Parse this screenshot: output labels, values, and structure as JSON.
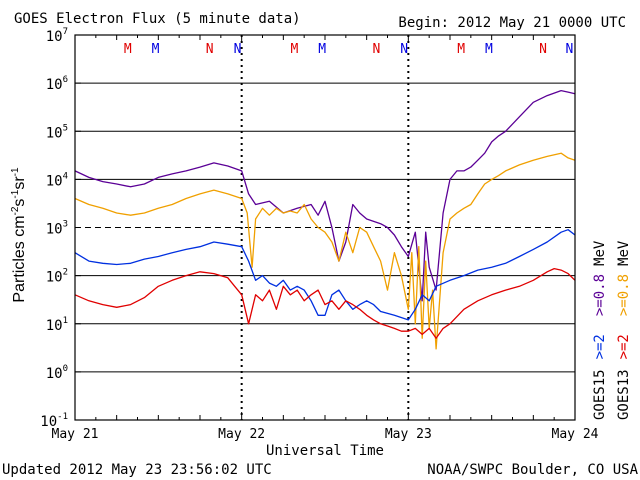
{
  "chart_data": {
    "type": "line",
    "title": "GOES Electron Flux (5 minute data)",
    "begin_label": "Begin: 2012 May 21 0000 UTC",
    "xlabel": "Universal Time",
    "ylabel_main": "Particles cm",
    "ylabel_exp1": "-2",
    "ylabel_mid": "s",
    "ylabel_exp2": "-1",
    "ylabel_tail": "sr",
    "ylabel_exp3": "-1",
    "y_scale": "log",
    "ylim": [
      0.1,
      10000000
    ],
    "y_ticks": [
      {
        "base": "10",
        "exp": "7"
      },
      {
        "base": "10",
        "exp": "6"
      },
      {
        "base": "10",
        "exp": "5"
      },
      {
        "base": "10",
        "exp": "4"
      },
      {
        "base": "10",
        "exp": "3"
      },
      {
        "base": "10",
        "exp": "2"
      },
      {
        "base": "10",
        "exp": "1"
      },
      {
        "base": "10",
        "exp": "0"
      },
      {
        "base": "10",
        "exp": "-1"
      }
    ],
    "xlim_hours": [
      0,
      72
    ],
    "x_ticks": [
      {
        "label": "May 21",
        "hour": 0
      },
      {
        "label": "May 22",
        "hour": 24
      },
      {
        "label": "May 23",
        "hour": 48
      },
      {
        "label": "May 24",
        "hour": 72
      }
    ],
    "mn_markers": [
      {
        "label": "M",
        "hour": 7.6,
        "color": "#e00000"
      },
      {
        "label": "M",
        "hour": 11.6,
        "color": "#0000e0"
      },
      {
        "label": "N",
        "hour": 19.4,
        "color": "#e00000"
      },
      {
        "label": "N",
        "hour": 23.4,
        "color": "#0000e0"
      },
      {
        "label": "M",
        "hour": 31.6,
        "color": "#e00000"
      },
      {
        "label": "M",
        "hour": 35.6,
        "color": "#0000e0"
      },
      {
        "label": "N",
        "hour": 43.4,
        "color": "#e00000"
      },
      {
        "label": "N",
        "hour": 47.4,
        "color": "#0000e0"
      },
      {
        "label": "M",
        "hour": 55.6,
        "color": "#e00000"
      },
      {
        "label": "M",
        "hour": 59.6,
        "color": "#0000e0"
      },
      {
        "label": "N",
        "hour": 67.4,
        "color": "#e00000"
      },
      {
        "label": "N",
        "hour": 71.2,
        "color": "#0000e0"
      }
    ],
    "series": [
      {
        "name": "GOES15 >=0.8 MeV",
        "color": "#5b0096",
        "hours": [
          0,
          2,
          4,
          6,
          8,
          10,
          12,
          14,
          16,
          18,
          20,
          22,
          24,
          25,
          26,
          28,
          30,
          32,
          34,
          35,
          36,
          37,
          38,
          39,
          40,
          41,
          42,
          44,
          45,
          46,
          47,
          48,
          49,
          50,
          50.5,
          51,
          52,
          53,
          54,
          55,
          56,
          57,
          58,
          59,
          60,
          61,
          62,
          64,
          66,
          68,
          70,
          71,
          72
        ],
        "values": [
          15000,
          11000,
          9000,
          8000,
          7000,
          8000,
          11000,
          13000,
          15000,
          18000,
          22000,
          19000,
          15000,
          5000,
          3000,
          3500,
          2000,
          2500,
          3000,
          1800,
          3500,
          1000,
          200,
          500,
          3000,
          2000,
          1500,
          1200,
          1000,
          700,
          400,
          250,
          800,
          30,
          800,
          150,
          50,
          2000,
          10000,
          15000,
          15000,
          18000,
          25000,
          35000,
          60000,
          80000,
          100000,
          200000,
          400000,
          550000,
          700000,
          650000,
          600000
        ]
      },
      {
        "name": "GOES13 >=0.8 MeV",
        "color": "#f0a000",
        "hours": [
          0,
          2,
          4,
          6,
          8,
          10,
          12,
          14,
          16,
          18,
          20,
          22,
          24,
          24.8,
          25.5,
          26,
          27,
          28,
          29,
          30,
          31,
          32,
          33,
          34,
          35,
          36,
          37,
          38,
          39,
          40,
          41,
          42,
          43,
          44,
          45,
          46,
          47,
          48,
          48.5,
          49,
          49.5,
          50,
          50.5,
          51,
          51.5,
          52,
          53,
          54,
          55,
          56,
          57,
          58,
          59,
          60,
          61,
          62,
          64,
          66,
          68,
          70,
          71,
          72
        ],
        "values": [
          4000,
          3000,
          2500,
          2000,
          1800,
          2000,
          2500,
          3000,
          4000,
          5000,
          6000,
          5000,
          4000,
          2000,
          150,
          1500,
          2500,
          1800,
          2500,
          2000,
          2200,
          2000,
          3000,
          1500,
          1000,
          800,
          500,
          200,
          800,
          300,
          1000,
          800,
          400,
          200,
          50,
          300,
          100,
          20,
          300,
          10,
          400,
          5,
          200,
          8,
          50,
          3,
          300,
          1500,
          2000,
          2500,
          3000,
          5000,
          8000,
          10000,
          12000,
          15000,
          20000,
          25000,
          30000,
          35000,
          28000,
          25000
        ]
      },
      {
        "name": "GOES15 >=2 MeV",
        "color": "#0030e0",
        "hours": [
          0,
          2,
          4,
          6,
          8,
          10,
          12,
          14,
          16,
          18,
          20,
          22,
          24,
          25,
          26,
          27,
          28,
          29,
          30,
          31,
          32,
          33,
          34,
          35,
          36,
          37,
          38,
          39,
          40,
          41,
          42,
          43,
          44,
          46,
          48,
          49,
          50,
          51,
          52,
          54,
          56,
          58,
          60,
          62,
          64,
          66,
          68,
          70,
          71,
          72
        ],
        "values": [
          300,
          200,
          180,
          170,
          180,
          220,
          250,
          300,
          350,
          400,
          500,
          450,
          400,
          200,
          80,
          100,
          70,
          60,
          80,
          50,
          60,
          50,
          30,
          15,
          15,
          40,
          50,
          30,
          20,
          25,
          30,
          25,
          18,
          15,
          12,
          20,
          40,
          30,
          60,
          80,
          100,
          130,
          150,
          180,
          250,
          350,
          500,
          800,
          900,
          700
        ]
      },
      {
        "name": "GOES13 >=2 MeV",
        "color": "#e00000",
        "hours": [
          0,
          2,
          4,
          6,
          8,
          10,
          12,
          14,
          16,
          18,
          20,
          22,
          23,
          24,
          25,
          25.5,
          26,
          27,
          28,
          29,
          30,
          31,
          32,
          33,
          34,
          35,
          36,
          37,
          38,
          39,
          40,
          41,
          42,
          43,
          44,
          45,
          46,
          47,
          48,
          49,
          50,
          51,
          52,
          53,
          54,
          56,
          58,
          60,
          62,
          64,
          66,
          68,
          69,
          70,
          71,
          72
        ],
        "values": [
          40,
          30,
          25,
          22,
          25,
          35,
          60,
          80,
          100,
          120,
          110,
          90,
          60,
          40,
          10,
          20,
          40,
          30,
          50,
          20,
          60,
          40,
          50,
          30,
          40,
          50,
          25,
          30,
          20,
          30,
          25,
          20,
          15,
          12,
          10,
          9,
          8,
          7,
          7,
          8,
          6,
          8,
          5,
          8,
          10,
          20,
          30,
          40,
          50,
          60,
          80,
          120,
          140,
          130,
          110,
          80
        ]
      }
    ],
    "legend": [
      {
        "sat": "GOES15",
        "e2": ">=2",
        "e08": ">=0.8",
        "unit": "MeV",
        "c2": "#0030e0",
        "c08": "#5b0096"
      },
      {
        "sat": "GOES13",
        "e2": ">=2",
        "e08": ">=0.8",
        "unit": "MeV",
        "c2": "#e00000",
        "c08": "#f0a000"
      }
    ],
    "updated": "Updated 2012 May 23 23:56:02 UTC",
    "credit": "NOAA/SWPC Boulder, CO USA"
  }
}
